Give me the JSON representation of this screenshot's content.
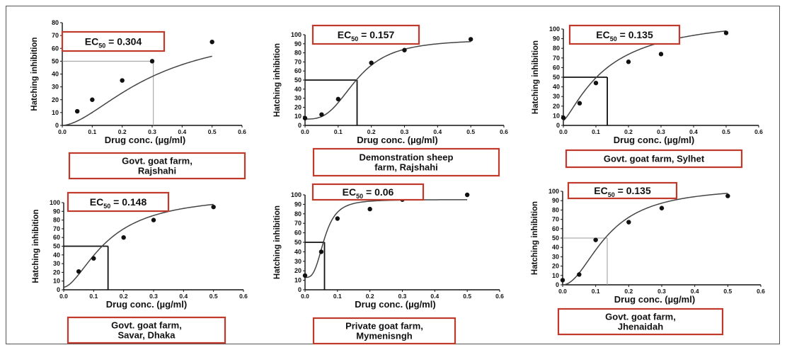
{
  "chart_data": [
    {
      "type": "scatter",
      "ec50_prefix": "EC",
      "ec50_sub": "50",
      "ec50_value": "= 0.304",
      "ec50": 0.304,
      "caption_lines": [
        "Govt. goat farm,",
        "Rajshahi"
      ],
      "xlabel": "Drug conc. (µg/ml)",
      "ylabel": "Hatching inhibition",
      "xlim": [
        0,
        0.6
      ],
      "ylim": [
        0,
        80
      ],
      "xticks": [
        "0.0",
        "0.1",
        "0.2",
        "0.3",
        "0.4",
        "0.5",
        "0.6"
      ],
      "yticks": [
        "0",
        "10",
        "20",
        "30",
        "40",
        "50",
        "60",
        "70",
        "80"
      ],
      "x": [
        0.05,
        0.1,
        0.2,
        0.3,
        0.5
      ],
      "y": [
        11,
        20,
        35,
        50,
        65
      ],
      "fit": {
        "bottom": 0,
        "top": 77,
        "hill": 1.7
      }
    },
    {
      "type": "scatter",
      "ec50_prefix": "EC",
      "ec50_sub": "50",
      "ec50_value": "= 0.157",
      "ec50": 0.157,
      "caption_lines": [
        "Demonstration sheep",
        "farm, Rajshahi"
      ],
      "xlabel": "Drug conc. (µg/ml)",
      "ylabel": "Hatching inhibition",
      "xlim": [
        0,
        0.6
      ],
      "ylim": [
        0,
        100
      ],
      "xticks": [
        "0.0",
        "0.1",
        "0.2",
        "0.3",
        "0.4",
        "0.5",
        "0.6"
      ],
      "yticks": [
        "0",
        "10",
        "20",
        "30",
        "40",
        "50",
        "60",
        "70",
        "80",
        "90",
        "100"
      ],
      "x": [
        0.0,
        0.05,
        0.1,
        0.2,
        0.3,
        0.5
      ],
      "y": [
        8,
        12,
        29,
        69,
        83,
        95
      ],
      "fit": {
        "bottom": 7,
        "top": 95,
        "hill": 3.0
      }
    },
    {
      "type": "scatter",
      "ec50_prefix": "EC",
      "ec50_sub": "50",
      "ec50_value": "= 0.135",
      "ec50": 0.135,
      "caption_lines": [
        "Govt. goat farm, Sylhet"
      ],
      "xlabel": "Drug conc. (µg/ml)",
      "ylabel": "Hatching inhibition",
      "xlim": [
        0,
        0.6
      ],
      "ylim": [
        0,
        100
      ],
      "xticks": [
        "0.0",
        "0.1",
        "0.2",
        "0.3",
        "0.4",
        "0.5",
        "0.6"
      ],
      "yticks": [
        "0",
        "10",
        "20",
        "30",
        "40",
        "50",
        "60",
        "70",
        "80",
        "90",
        "100"
      ],
      "x": [
        0.0,
        0.05,
        0.1,
        0.2,
        0.3,
        0.5
      ],
      "y": [
        8,
        23,
        44,
        66,
        74,
        96
      ],
      "fit": {
        "bottom": 5,
        "top": 115,
        "hill": 1.3
      }
    },
    {
      "type": "scatter",
      "ec50_prefix": "EC",
      "ec50_sub": "50",
      "ec50_value": "= 0.148",
      "ec50": 0.148,
      "caption_lines": [
        "Govt. goat farm,",
        "Savar, Dhaka"
      ],
      "xlabel": "Drug conc. (µg/ml)",
      "ylabel": "Hatching inhibition",
      "xlim": [
        0,
        0.6
      ],
      "ylim": [
        0,
        100
      ],
      "xticks": [
        "0.0",
        "0.1",
        "0.2",
        "0.3",
        "0.4",
        "0.5",
        "0.6"
      ],
      "yticks": [
        "0",
        "10",
        "20",
        "30",
        "40",
        "50",
        "60",
        "70",
        "80",
        "90",
        "100"
      ],
      "x": [
        0.05,
        0.1,
        0.2,
        0.3,
        0.5
      ],
      "y": [
        21,
        36,
        60,
        80,
        95
      ],
      "fit": {
        "bottom": 3,
        "top": 110,
        "hill": 1.7
      }
    },
    {
      "type": "scatter",
      "ec50_prefix": "EC",
      "ec50_sub": "50",
      "ec50_value": "= 0.06",
      "ec50": 0.06,
      "caption_lines": [
        "Private goat farm,",
        "Mymenisngh"
      ],
      "xlabel": "Drug conc. (µg/ml)",
      "ylabel": "Hatching inhibition",
      "xlim": [
        0,
        0.6
      ],
      "ylim": [
        0,
        100
      ],
      "xticks": [
        "0.0",
        "0.1",
        "0.2",
        "0.3",
        "0.4",
        "0.5",
        "0.6"
      ],
      "yticks": [
        "0",
        "10",
        "20",
        "30",
        "40",
        "50",
        "60",
        "70",
        "80",
        "90",
        "100"
      ],
      "x": [
        0.0,
        0.05,
        0.1,
        0.2,
        0.3,
        0.5
      ],
      "y": [
        15,
        40,
        75,
        85,
        95,
        100
      ],
      "fit": {
        "bottom": 13,
        "top": 95,
        "hill": 3.2
      }
    },
    {
      "type": "scatter",
      "ec50_prefix": "EC",
      "ec50_sub": "50",
      "ec50_value": "= 0.135",
      "ec50": 0.135,
      "caption_lines": [
        "Govt. goat farm,",
        "Jhenaidah"
      ],
      "xlabel": "Drug conc. (µg/ml)",
      "ylabel": "Hatching inhibition",
      "xlim": [
        0,
        0.6
      ],
      "ylim": [
        0,
        100
      ],
      "xticks": [
        "0.0",
        "0.1",
        "0.2",
        "0.3",
        "0.4",
        "0.5",
        "0.6"
      ],
      "yticks": [
        "0",
        "10",
        "20",
        "30",
        "40",
        "50",
        "60",
        "70",
        "80",
        "90",
        "100"
      ],
      "x": [
        0.0,
        0.05,
        0.1,
        0.2,
        0.3,
        0.5
      ],
      "y": [
        5,
        11,
        48,
        67,
        82,
        95
      ],
      "fit": {
        "bottom": 0,
        "top": 105,
        "hill": 2.0
      }
    }
  ],
  "colors": {
    "box_border": "#c0392b",
    "curve": "#444444",
    "guide_dark": "#111111",
    "guide_light": "#9a9a9a",
    "marker": "#111111",
    "axis": "#111111"
  }
}
